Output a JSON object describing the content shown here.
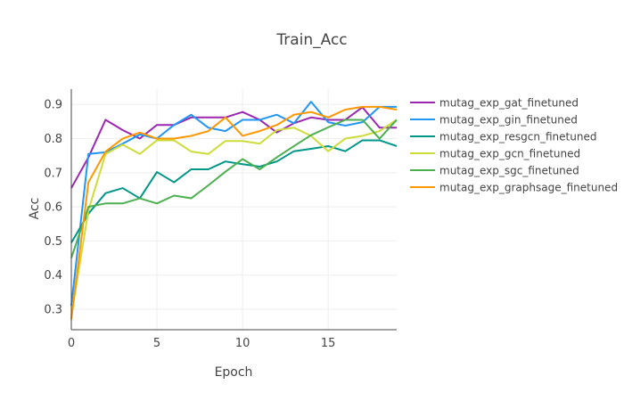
{
  "chart_data": {
    "type": "line",
    "title": "Train_Acc",
    "xlabel": "Epoch",
    "ylabel": "Acc",
    "xlim": [
      0,
      19
    ],
    "ylim": [
      0.24,
      0.945
    ],
    "x_ticks": [
      0,
      5,
      10,
      15
    ],
    "y_ticks": [
      0.3,
      0.4,
      0.5,
      0.6,
      0.7,
      0.8,
      0.9
    ],
    "grid": true,
    "legend_position": "right",
    "x": [
      0,
      1,
      2,
      3,
      4,
      5,
      6,
      7,
      8,
      9,
      10,
      11,
      12,
      13,
      14,
      15,
      16,
      17,
      18,
      19
    ],
    "series": [
      {
        "name": "mutag_exp_gat_finetuned",
        "color": "#9c27b0",
        "values": [
          0.655,
          0.745,
          0.855,
          0.825,
          0.8,
          0.84,
          0.84,
          0.862,
          0.862,
          0.862,
          0.878,
          0.855,
          0.818,
          0.845,
          0.862,
          0.855,
          0.855,
          0.892,
          0.832,
          0.832
        ]
      },
      {
        "name": "mutag_exp_gin_finetuned",
        "color": "#2196f3",
        "values": [
          0.31,
          0.755,
          0.76,
          0.785,
          0.812,
          0.8,
          0.84,
          0.87,
          0.832,
          0.822,
          0.855,
          0.855,
          0.87,
          0.845,
          0.908,
          0.848,
          0.838,
          0.848,
          0.893,
          0.893
        ]
      },
      {
        "name": "mutag_exp_resgcn_finetuned",
        "color": "#009688",
        "values": [
          0.495,
          0.58,
          0.64,
          0.655,
          0.625,
          0.702,
          0.672,
          0.71,
          0.71,
          0.733,
          0.725,
          0.718,
          0.733,
          0.763,
          0.77,
          0.778,
          0.763,
          0.795,
          0.795,
          0.778
        ]
      },
      {
        "name": "mutag_exp_gcn_finetuned",
        "color": "#cddc39",
        "values": [
          0.28,
          0.59,
          0.755,
          0.782,
          0.755,
          0.795,
          0.795,
          0.762,
          0.755,
          0.793,
          0.793,
          0.785,
          0.825,
          0.832,
          0.808,
          0.763,
          0.8,
          0.808,
          0.822,
          0.855
        ]
      },
      {
        "name": "mutag_exp_sgc_finetuned",
        "color": "#4caf50",
        "values": [
          0.45,
          0.6,
          0.61,
          0.61,
          0.625,
          0.61,
          0.633,
          0.625,
          0.663,
          0.703,
          0.74,
          0.71,
          0.745,
          0.778,
          0.81,
          0.833,
          0.855,
          0.855,
          0.8,
          0.855
        ]
      },
      {
        "name": "mutag_exp_graphsage_finetuned",
        "color": "#ff9800",
        "values": [
          0.27,
          0.672,
          0.762,
          0.8,
          0.818,
          0.8,
          0.8,
          0.808,
          0.822,
          0.862,
          0.808,
          0.822,
          0.84,
          0.87,
          0.878,
          0.862,
          0.885,
          0.893,
          0.893,
          0.885
        ]
      }
    ]
  }
}
